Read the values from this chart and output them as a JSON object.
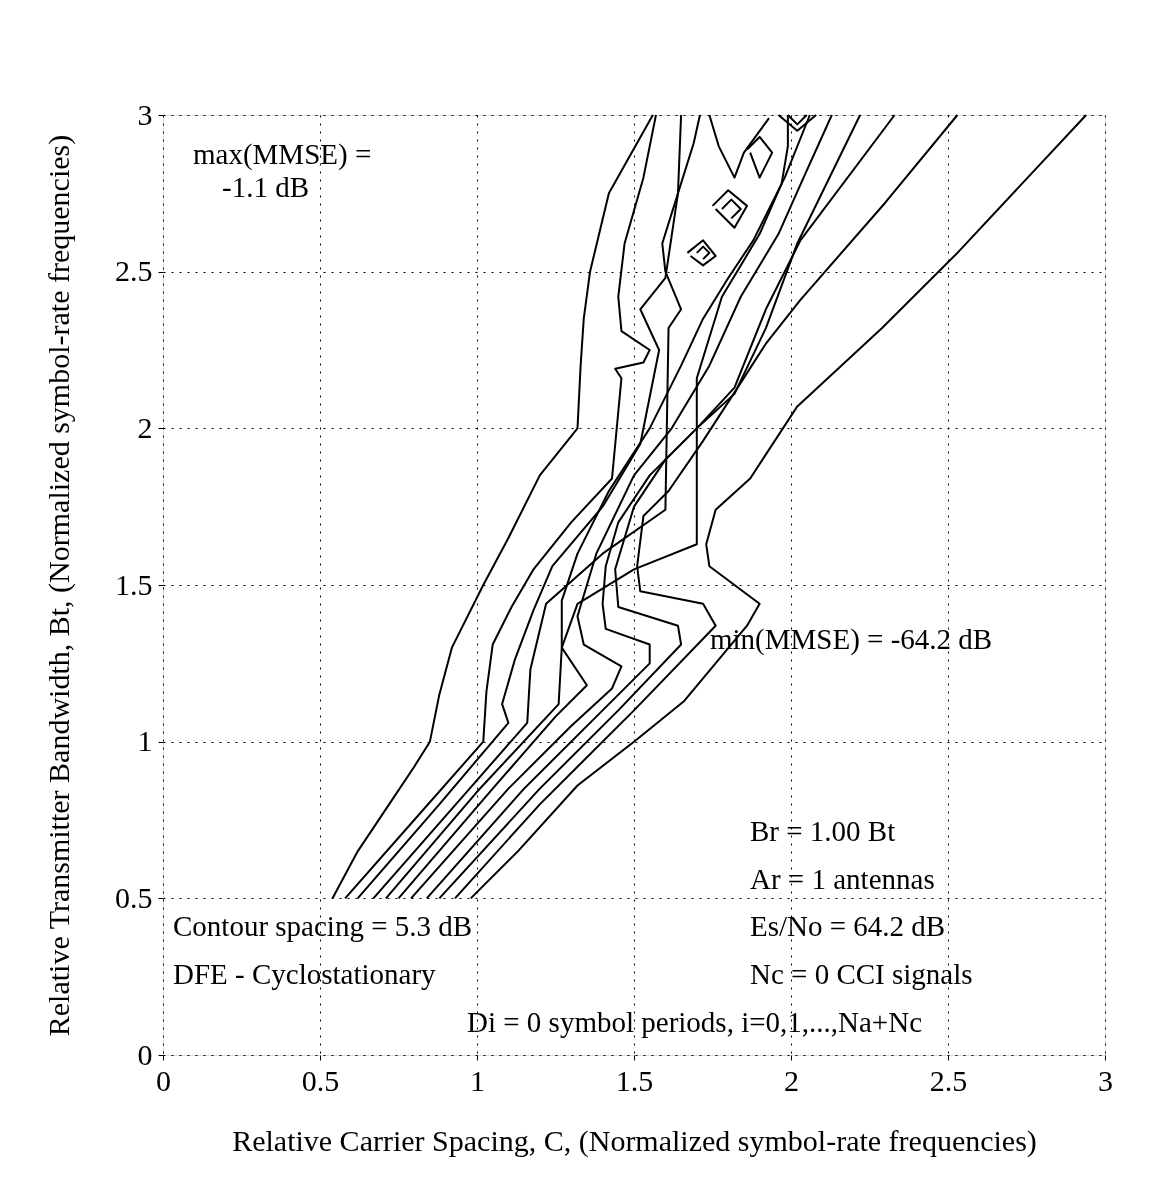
{
  "chart_data": {
    "type": "line",
    "xlabel": "Relative Carrier Spacing, C, (Normalized symbol-rate frequencies)",
    "ylabel": "Relative Transmitter Bandwidth, Bt, (Normalized symbol-rate frequencies)",
    "xlim": [
      0,
      3
    ],
    "ylim": [
      0,
      3
    ],
    "xticks": [
      0,
      0.5,
      1,
      1.5,
      2,
      2.5,
      3
    ],
    "yticks": [
      0,
      0.5,
      1,
      1.5,
      2,
      2.5,
      3
    ],
    "grid": true,
    "marker": "none",
    "line_style": "solid",
    "annotations": [
      "max(MMSE) =",
      "-1.1 dB",
      "min(MMSE) = -64.2 dB",
      "Br = 1.00 Bt",
      "Ar = 1 antennas",
      "Es/No = 64.2 dB",
      "Nc = 0 CCI signals",
      "Contour spacing = 5.3 dB",
      "DFE - Cyclostationary",
      "Di = 0 symbol periods, i=0,1,...,Na+Nc"
    ],
    "series": [
      {
        "color": "#000000",
        "x": [
          0.54,
          0.62,
          0.72,
          0.8,
          0.85,
          0.88,
          0.92,
          1.02,
          1.1,
          1.2,
          1.32,
          1.33,
          1.34,
          1.36,
          1.42,
          1.56
        ],
        "values": [
          0.5,
          0.65,
          0.8,
          0.92,
          1.0,
          1.15,
          1.3,
          1.5,
          1.65,
          1.85,
          2.0,
          2.2,
          2.35,
          2.5,
          2.75,
          3.0
        ]
      },
      {
        "color": "#000000",
        "x": [
          0.58,
          0.8,
          1.02,
          1.03,
          1.05,
          1.11,
          1.18,
          1.3,
          1.43,
          1.46,
          1.44,
          1.53,
          1.55,
          1.46,
          1.45,
          1.47,
          1.53,
          1.57
        ],
        "values": [
          0.5,
          0.75,
          1.0,
          1.16,
          1.31,
          1.43,
          1.55,
          1.7,
          1.84,
          2.16,
          2.19,
          2.21,
          2.25,
          2.31,
          2.42,
          2.59,
          2.8,
          3.0
        ]
      },
      {
        "color": "#000000",
        "x": [
          0.62,
          0.88,
          1.1,
          1.08,
          1.12,
          1.18,
          1.24,
          1.4,
          1.52,
          1.58,
          1.52,
          1.6,
          1.64,
          1.65
        ],
        "values": [
          0.5,
          0.8,
          1.06,
          1.12,
          1.26,
          1.42,
          1.56,
          1.75,
          1.95,
          2.25,
          2.38,
          2.48,
          2.75,
          3.0
        ]
      },
      {
        "color": "#000000",
        "x": [
          0.67,
          0.95,
          1.16,
          1.17,
          1.22,
          1.4,
          1.6,
          1.61,
          1.65,
          1.6,
          1.59,
          1.64,
          1.69,
          1.71
        ],
        "values": [
          0.5,
          0.82,
          1.06,
          1.23,
          1.44,
          1.6,
          1.74,
          2.32,
          2.38,
          2.5,
          2.59,
          2.75,
          2.91,
          3.0
        ]
      },
      {
        "color": "#000000",
        "x": [
          0.71,
          1.0,
          1.26,
          1.27,
          1.32,
          1.5,
          1.7,
          1.7,
          1.78,
          1.84,
          1.9,
          1.97,
          1.99,
          1.99
        ],
        "values": [
          0.5,
          0.84,
          1.12,
          1.3,
          1.44,
          1.55,
          1.63,
          2.16,
          2.42,
          2.52,
          2.62,
          2.78,
          2.9,
          3.0
        ]
      },
      {
        "color": "#000000",
        "x": [
          1.74,
          1.77,
          1.82,
          1.85,
          1.93
        ],
        "values": [
          3.0,
          2.9,
          2.8,
          2.88,
          2.99
        ]
      },
      {
        "color": "#000000",
        "x": [
          0.75,
          1.05,
          1.25,
          1.35,
          1.27,
          1.27,
          1.32,
          1.42,
          1.55,
          1.65,
          1.72,
          1.8,
          1.88,
          1.98,
          2.06
        ],
        "values": [
          0.5,
          0.85,
          1.08,
          1.18,
          1.3,
          1.45,
          1.6,
          1.8,
          2.0,
          2.2,
          2.35,
          2.48,
          2.6,
          2.8,
          3.0
        ]
      },
      {
        "color": "#000000",
        "x": [
          0.79,
          1.1,
          1.3,
          1.43,
          1.46,
          1.34,
          1.32,
          1.38,
          1.5,
          1.62,
          1.74,
          1.84,
          1.96,
          2.04,
          2.13
        ],
        "values": [
          0.5,
          0.85,
          1.05,
          1.17,
          1.24,
          1.31,
          1.4,
          1.6,
          1.85,
          2.0,
          2.2,
          2.42,
          2.62,
          2.8,
          3.0
        ]
      },
      {
        "color": "#000000",
        "x": [
          0.84,
          1.15,
          1.4,
          1.55,
          1.55,
          1.41,
          1.4,
          1.41,
          1.45,
          1.55,
          1.7,
          1.82,
          1.92,
          2.02,
          2.22
        ],
        "values": [
          0.5,
          0.85,
          1.1,
          1.25,
          1.31,
          1.36,
          1.44,
          1.56,
          1.7,
          1.85,
          2.0,
          2.11,
          2.32,
          2.59,
          3.0
        ]
      },
      {
        "color": "#000000",
        "x": [
          0.88,
          1.2,
          1.45,
          1.65,
          1.64,
          1.45,
          1.44,
          1.5,
          1.6,
          1.7,
          1.82,
          1.92,
          2.03,
          2.33
        ],
        "values": [
          0.5,
          0.85,
          1.1,
          1.31,
          1.37,
          1.43,
          1.55,
          1.75,
          1.9,
          2.0,
          2.13,
          2.38,
          2.6,
          3.0
        ]
      },
      {
        "color": "#000000",
        "x": [
          0.93,
          1.2,
          1.5,
          1.76,
          1.72,
          1.52,
          1.51,
          1.53,
          1.61,
          1.72,
          1.83,
          1.92,
          2.03,
          2.3,
          2.53
        ],
        "values": [
          0.5,
          0.8,
          1.1,
          1.37,
          1.44,
          1.48,
          1.56,
          1.72,
          1.8,
          1.96,
          2.13,
          2.27,
          2.41,
          2.72,
          3.0
        ]
      },
      {
        "color": "#000000",
        "x": [
          0.98,
          1.13,
          1.32,
          1.5,
          1.66,
          1.86,
          1.9,
          1.74,
          1.73,
          1.76,
          1.87,
          2.02,
          2.29,
          2.53,
          2.94
        ],
        "values": [
          0.5,
          0.65,
          0.86,
          1.0,
          1.13,
          1.37,
          1.44,
          1.56,
          1.63,
          1.74,
          1.84,
          2.07,
          2.32,
          2.56,
          3.0
        ]
      },
      {
        "color": "#000000",
        "x": [
          1.67,
          1.72,
          1.76,
          1.72,
          1.68
        ],
        "values": [
          2.56,
          2.6,
          2.55,
          2.52,
          2.55
        ]
      },
      {
        "color": "#000000",
        "x": [
          1.7,
          1.72,
          1.74,
          1.72
        ],
        "values": [
          2.56,
          2.58,
          2.56,
          2.54
        ]
      },
      {
        "color": "#000000",
        "x": [
          1.75,
          1.8,
          1.86,
          1.82,
          1.76
        ],
        "values": [
          2.71,
          2.76,
          2.71,
          2.64,
          2.7
        ]
      },
      {
        "color": "#000000",
        "x": [
          1.78,
          1.81,
          1.84,
          1.81
        ],
        "values": [
          2.7,
          2.73,
          2.7,
          2.67
        ]
      },
      {
        "color": "#000000",
        "x": [
          1.86,
          1.9,
          1.94,
          1.9,
          1.87
        ],
        "values": [
          2.89,
          2.93,
          2.88,
          2.8,
          2.88
        ]
      },
      {
        "color": "#000000",
        "x": [
          1.96,
          2.02,
          2.08
        ],
        "values": [
          3.0,
          2.95,
          3.0
        ]
      },
      {
        "color": "#000000",
        "x": [
          1.99,
          2.02,
          2.05
        ],
        "values": [
          3.0,
          2.97,
          3.0
        ]
      }
    ]
  }
}
